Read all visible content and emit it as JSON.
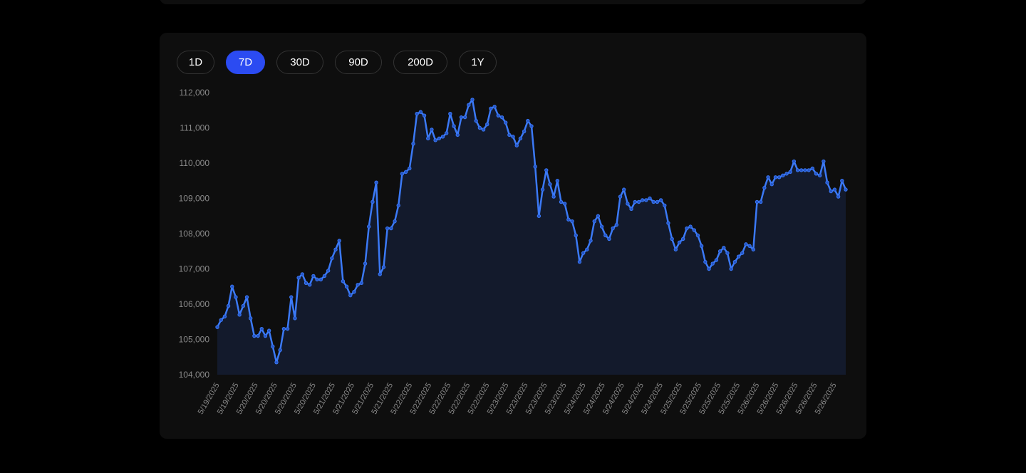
{
  "range_tabs": [
    {
      "label": "1D",
      "active": false
    },
    {
      "label": "7D",
      "active": true
    },
    {
      "label": "30D",
      "active": false
    },
    {
      "label": "90D",
      "active": false
    },
    {
      "label": "200D",
      "active": false
    },
    {
      "label": "1Y",
      "active": false
    }
  ],
  "colors": {
    "accent": "#2b4bf2",
    "line": "#3b79f6",
    "area": "#131a2c",
    "tick_text": "#8a8a8a",
    "card": "#0e0e0e"
  },
  "chart_data": {
    "type": "area",
    "title": "",
    "xlabel": "",
    "ylabel": "",
    "ylim": [
      104000,
      112000
    ],
    "yticks": [
      104000,
      105000,
      106000,
      107000,
      108000,
      109000,
      110000,
      111000,
      112000
    ],
    "ytick_labels": [
      "104,000",
      "105,000",
      "106,000",
      "107,000",
      "108,000",
      "109,000",
      "110,000",
      "111,000",
      "112,000"
    ],
    "xtick_labels": [
      "5/19/2025",
      "5/19/2025",
      "5/20/2025",
      "5/20/2025",
      "5/20/2025",
      "5/20/2025",
      "5/21/2025",
      "5/21/2025",
      "5/21/2025",
      "5/21/2025",
      "5/22/2025",
      "5/22/2025",
      "5/22/2025",
      "5/22/2025",
      "5/22/2025",
      "5/23/2025",
      "5/23/2025",
      "5/23/2025",
      "5/23/2025",
      "5/24/2025",
      "5/24/2025",
      "5/24/2025",
      "5/24/2025",
      "5/24/2025",
      "5/25/2025",
      "5/25/2025",
      "5/25/2025",
      "5/25/2025",
      "5/26/2025",
      "5/26/2025",
      "5/26/2025",
      "5/26/2025",
      "5/26/2025"
    ],
    "grid": false,
    "legend": "none",
    "series": [
      {
        "values": [
          105350,
          105550,
          105650,
          105950,
          106500,
          106200,
          105700,
          105950,
          106200,
          105600,
          105100,
          105100,
          105300,
          105100,
          105250,
          104800,
          104350,
          104700,
          105300,
          105300,
          106200,
          105600,
          106750,
          106850,
          106600,
          106550,
          106800,
          106700,
          106700,
          106800,
          106950,
          107300,
          107550,
          107800,
          106650,
          106500,
          106250,
          106350,
          106550,
          106600,
          107150,
          108200,
          108900,
          109450,
          106850,
          107050,
          108150,
          108150,
          108350,
          108800,
          109700,
          109750,
          109850,
          110550,
          111400,
          111450,
          111350,
          110700,
          110950,
          110650,
          110700,
          110750,
          110850,
          111400,
          111050,
          110800,
          111300,
          111300,
          111650,
          111800,
          111200,
          111000,
          110950,
          111100,
          111550,
          111600,
          111350,
          111300,
          111150,
          110800,
          110750,
          110500,
          110700,
          110900,
          111200,
          111050,
          109900,
          108500,
          109250,
          109800,
          109400,
          109050,
          109500,
          108900,
          108850,
          108400,
          108350,
          107950,
          107200,
          107450,
          107550,
          107800,
          108350,
          108500,
          108200,
          107950,
          107850,
          108150,
          108250,
          109050,
          109250,
          108850,
          108700,
          108900,
          108900,
          108950,
          108950,
          109000,
          108900,
          108900,
          108950,
          108800,
          108300,
          107850,
          107550,
          107750,
          107850,
          108150,
          108200,
          108100,
          107950,
          107650,
          107200,
          107000,
          107150,
          107250,
          107500,
          107600,
          107450,
          107000,
          107200,
          107350,
          107450,
          107700,
          107650,
          107550,
          108900,
          108900,
          109300,
          109600,
          109400,
          109600,
          109600,
          109650,
          109700,
          109750,
          110050,
          109800,
          109800,
          109800,
          109800,
          109850,
          109700,
          109650,
          110050,
          109450,
          109200,
          109250,
          109050,
          109500,
          109250
        ]
      }
    ]
  }
}
